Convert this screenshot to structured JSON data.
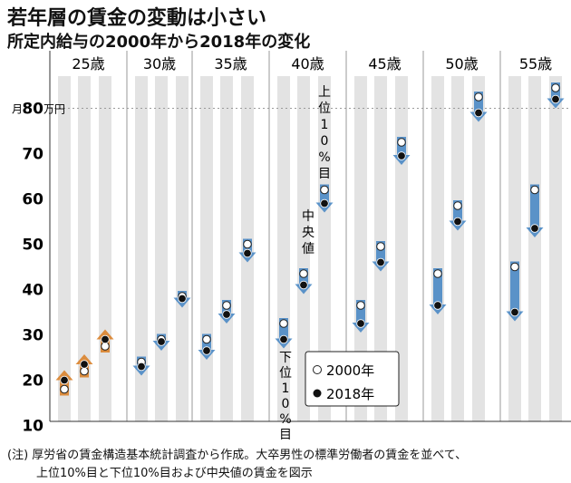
{
  "title": "若年層の賃金の変動は小さい",
  "subtitle": "所定内給与の2000年から2018年の変化",
  "unit_label": {
    "prefix": "月",
    "suffix": "万円"
  },
  "colors": {
    "up_arrow": "#d9822b",
    "down_arrow": "#4a88c4",
    "band": "#e3e3e3",
    "grid": "#9a9a9a"
  },
  "callouts": {
    "top10": "上位10%目",
    "median": "中央値",
    "bottom10": "下位10%目"
  },
  "legend": [
    {
      "label": "2000年",
      "marker": "open-circle"
    },
    {
      "label": "2018年",
      "marker": "filled-circle"
    }
  ],
  "note_line1": "(注) 厚労省の賃金構造基本統計調査から作成。大卒男性の標準労働者の賃金を並べて、",
  "note_line2": "上位10%目と下位10%目および中央値の賃金を図示",
  "chart_data": {
    "type": "arrow-dumbbell",
    "ylim": [
      10,
      85
    ],
    "yticks": [
      10,
      20,
      30,
      40,
      50,
      60,
      70,
      80
    ],
    "categories": [
      "25歳",
      "30歳",
      "35歳",
      "40歳",
      "45歳",
      "50歳",
      "55歳"
    ],
    "series_order": [
      "下位10%目",
      "中央値",
      "上位10%目"
    ],
    "groups": [
      {
        "age": "25歳",
        "points": [
          {
            "v2000": 18,
            "v2018": 20
          },
          {
            "v2000": 22,
            "v2018": 23.5
          },
          {
            "v2000": 27.5,
            "v2018": 29
          }
        ]
      },
      {
        "age": "30歳",
        "points": [
          {
            "v2000": 24,
            "v2018": 23
          },
          {
            "v2000": 29,
            "v2018": 28.5
          },
          {
            "v2000": 38.5,
            "v2018": 38
          }
        ]
      },
      {
        "age": "35歳",
        "points": [
          {
            "v2000": 29,
            "v2018": 26.5
          },
          {
            "v2000": 36.5,
            "v2018": 34.5
          },
          {
            "v2000": 50,
            "v2018": 48
          }
        ]
      },
      {
        "age": "40歳",
        "points": [
          {
            "v2000": 32.5,
            "v2018": 29
          },
          {
            "v2000": 43.5,
            "v2018": 41
          },
          {
            "v2000": 62,
            "v2018": 59
          }
        ]
      },
      {
        "age": "45歳",
        "points": [
          {
            "v2000": 36.5,
            "v2018": 32.5
          },
          {
            "v2000": 49.5,
            "v2018": 46
          },
          {
            "v2000": 72.5,
            "v2018": 69.5
          }
        ]
      },
      {
        "age": "50歳",
        "points": [
          {
            "v2000": 43.5,
            "v2018": 36.5
          },
          {
            "v2000": 58.5,
            "v2018": 55
          },
          {
            "v2000": 82.5,
            "v2018": 79
          }
        ]
      },
      {
        "age": "55歳",
        "points": [
          {
            "v2000": 45,
            "v2018": 35
          },
          {
            "v2000": 62,
            "v2018": 53.5
          },
          {
            "v2000": 84.5,
            "v2018": 82
          }
        ]
      }
    ]
  }
}
